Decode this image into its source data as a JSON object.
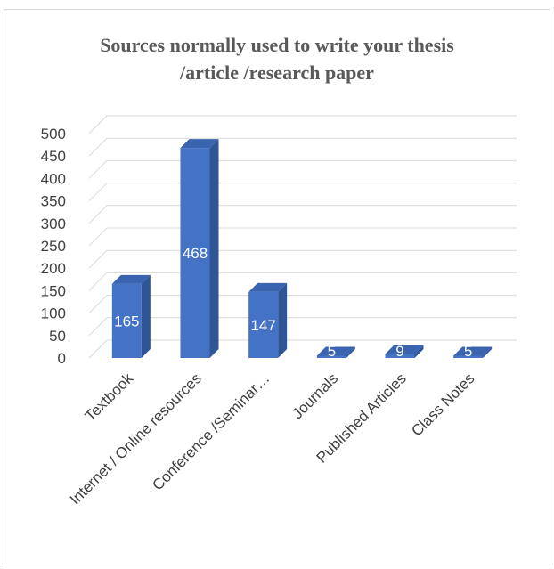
{
  "chart_data": {
    "type": "bar",
    "title_lines": [
      "Sources normally used to write your thesis",
      "/article /research paper"
    ],
    "categories": [
      "Textbook",
      "Internet / Online resources",
      "Conference /Seminar…",
      "Journals",
      "Published Articles",
      "Class Notes"
    ],
    "values": [
      165,
      468,
      147,
      5,
      9,
      5
    ],
    "data_labels": [
      "165",
      "468",
      "147",
      "5",
      "9",
      "5"
    ],
    "ylim": [
      0,
      500
    ],
    "yticks": [
      0,
      50,
      100,
      150,
      200,
      250,
      300,
      350,
      400,
      450,
      500
    ],
    "grid": true,
    "legend": "none",
    "style": "3d-column",
    "bar_color": "#4472c4",
    "bar_side_color": "#2f5597",
    "bar_top_color": "#3a64b0",
    "grid_color": "#d9d9d9",
    "text_color": "#404040"
  }
}
